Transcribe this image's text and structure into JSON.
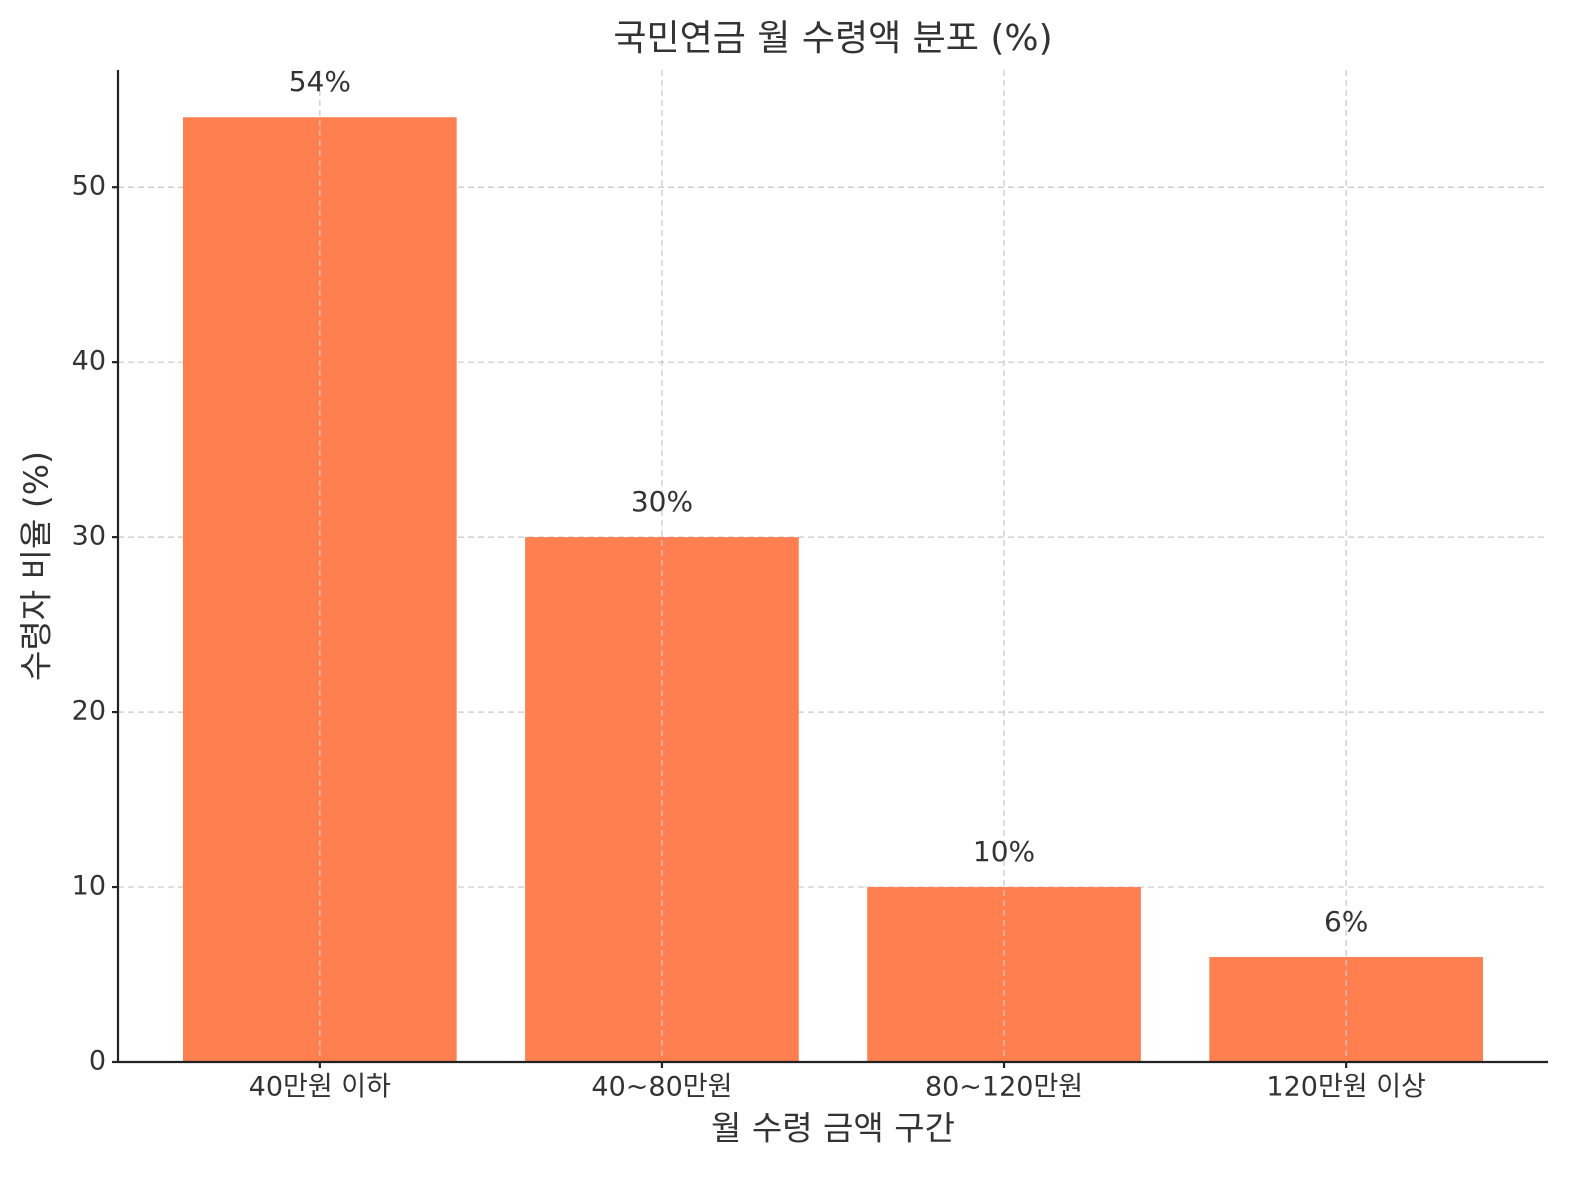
{
  "chart_data": {
    "type": "bar",
    "title": "국민연금 월 수령액 분포 (%)",
    "x_label": "월 수령 금액 구간",
    "y_label": "수령자 비율 (%)",
    "categories": [
      "40만원 이하",
      "40~80만원",
      "80~120만원",
      "120만원 이상"
    ],
    "values": [
      54,
      30,
      10,
      6
    ],
    "value_labels": [
      "54%",
      "30%",
      "10%",
      "6%"
    ],
    "color": "#ff7f50",
    "ylim": [
      0,
      56.7
    ],
    "yticks": [
      0,
      10,
      20,
      30,
      40,
      50
    ],
    "grid": true
  }
}
